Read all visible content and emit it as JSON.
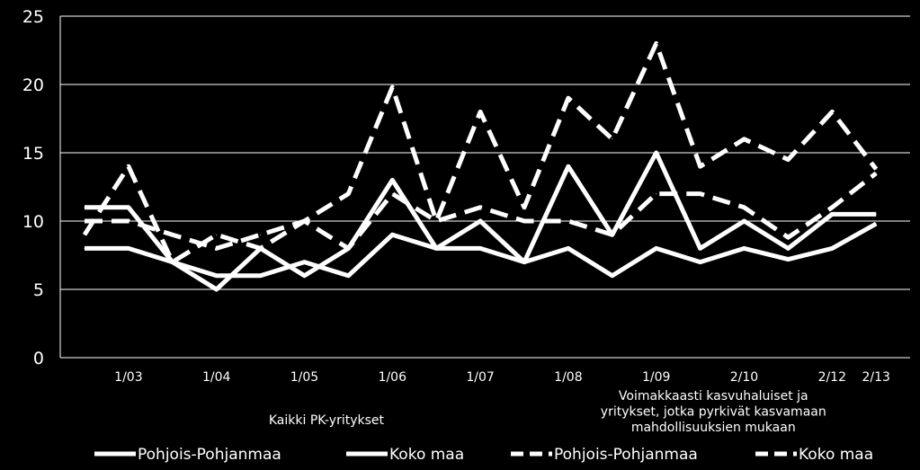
{
  "chart_data": {
    "type": "line",
    "ylim": [
      0,
      25
    ],
    "yticks": [
      0,
      5,
      10,
      15,
      20,
      25
    ],
    "x_tick_labels": [
      {
        "label": "1/03",
        "index": 2
      },
      {
        "label": "1/04",
        "index": 4
      },
      {
        "label": "1/05",
        "index": 6
      },
      {
        "label": "1/06",
        "index": 8
      },
      {
        "label": "1/07",
        "index": 10
      },
      {
        "label": "1/08",
        "index": 12
      },
      {
        "label": "1/09",
        "index": 14
      },
      {
        "label": "2/10",
        "index": 16
      },
      {
        "label": "2/12",
        "index": 18
      },
      {
        "label": "2/13",
        "index": 19
      }
    ],
    "group_labels": [
      {
        "lines": [
          "Kaikki PK-yritykset"
        ],
        "index": 6.5
      },
      {
        "lines": [
          "Voimakkaasti kasvuhaluiset ja",
          "yritykset, jotka pyrkivät kasvamaan",
          "mahdollisuuksien mukaan"
        ],
        "index": 15.3
      }
    ],
    "series": [
      {
        "name": "Pohjois-Pohjanmaa",
        "style": "solid",
        "color": "#ffffff",
        "values": [
          11,
          11,
          7,
          5,
          8,
          6,
          8,
          13,
          8,
          10,
          7,
          14,
          9,
          15,
          8,
          10,
          8,
          10.5,
          10.5
        ]
      },
      {
        "name": "Koko maa",
        "style": "solid",
        "color": "#ffffff",
        "values": [
          8,
          8,
          7,
          6,
          6,
          7,
          6,
          9,
          8,
          8,
          7,
          8,
          6,
          8,
          7,
          8,
          7.2,
          8,
          9.8
        ]
      },
      {
        "name": "Pohjois-Pohjanmaa",
        "style": "dashed",
        "color": "#ffffff",
        "values": [
          9,
          14,
          7,
          9,
          8,
          10,
          8,
          12,
          10,
          11,
          10,
          10,
          9,
          12,
          12,
          11,
          8.8,
          11,
          13.5
        ]
      },
      {
        "name": "Koko maa",
        "style": "dashed",
        "color": "#ffffff",
        "values": [
          10,
          10,
          9,
          8,
          9,
          10,
          12,
          19.8,
          10,
          18,
          11,
          19,
          16,
          23,
          14,
          16,
          14.5,
          18,
          13.8
        ]
      }
    ]
  }
}
